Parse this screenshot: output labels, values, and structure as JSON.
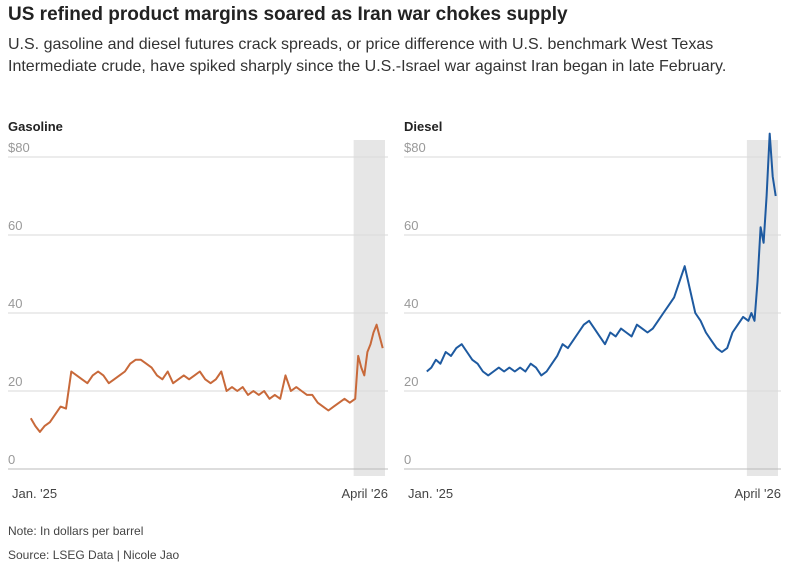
{
  "header": {
    "title": "US refined product margins soared as Iran war chokes supply",
    "subtitle": "U.S. gasoline and diesel futures crack spreads, or price difference with U.S. benchmark West Texas Intermediate crude, have spiked sharply since the U.S.-Israel war against Iran began in late February."
  },
  "footer": {
    "note": "Note: In dollars per barrel",
    "source": "Source: LSEG Data | Nicole Jao"
  },
  "chart_data": [
    {
      "type": "line",
      "title": "Gasoline",
      "color": "#c8693a",
      "ylim": [
        0,
        85
      ],
      "y_ticks": [
        0,
        20,
        40,
        60,
        80
      ],
      "y_tick_labels": [
        "0",
        "20",
        "40",
        "60",
        "$80"
      ],
      "x_tick_labels": [
        "Jan. '25",
        "April '26"
      ],
      "x_range": [
        "2025-01",
        "2026-04"
      ],
      "shaded_region": {
        "from": "2026-02-28",
        "to": "2026-04-10"
      },
      "grid": true,
      "series": [
        {
          "x": [
            "2025-01-02",
            "2025-01-08",
            "2025-01-14",
            "2025-01-20",
            "2025-01-27",
            "2025-02-03",
            "2025-02-10",
            "2025-02-17",
            "2025-02-24",
            "2025-03-03",
            "2025-03-10",
            "2025-03-17",
            "2025-03-24",
            "2025-03-31",
            "2025-04-07",
            "2025-04-14",
            "2025-04-21",
            "2025-04-28",
            "2025-05-05",
            "2025-05-12",
            "2025-05-19",
            "2025-05-26",
            "2025-06-02",
            "2025-06-09",
            "2025-06-16",
            "2025-06-23",
            "2025-06-30",
            "2025-07-07",
            "2025-07-14",
            "2025-07-21",
            "2025-07-28",
            "2025-08-04",
            "2025-08-11",
            "2025-08-18",
            "2025-08-25",
            "2025-09-01",
            "2025-09-08",
            "2025-09-15",
            "2025-09-22",
            "2025-09-29",
            "2025-10-06",
            "2025-10-13",
            "2025-10-20",
            "2025-10-27",
            "2025-11-03",
            "2025-11-10",
            "2025-11-17",
            "2025-11-24",
            "2025-12-01",
            "2025-12-08",
            "2025-12-15",
            "2025-12-22",
            "2025-12-29",
            "2026-01-05",
            "2026-01-12",
            "2026-01-19",
            "2026-01-26",
            "2026-02-02",
            "2026-02-09",
            "2026-02-16",
            "2026-02-23",
            "2026-03-02",
            "2026-03-06",
            "2026-03-10",
            "2026-03-14",
            "2026-03-18",
            "2026-03-22",
            "2026-03-26",
            "2026-03-30",
            "2026-04-03",
            "2026-04-07"
          ],
          "y": [
            13,
            11,
            9.5,
            11,
            12,
            14,
            16,
            15.5,
            25,
            24,
            23,
            22,
            24,
            25,
            24,
            22,
            23,
            24,
            25,
            27,
            28,
            28,
            27,
            26,
            24,
            23,
            25,
            22,
            23,
            24,
            23,
            24,
            25,
            23,
            22,
            23,
            25,
            20,
            21,
            20,
            21,
            19,
            20,
            19,
            20,
            18,
            19,
            18,
            24,
            20,
            21,
            20,
            19,
            19,
            17,
            16,
            15,
            16,
            17,
            18,
            17,
            18,
            29,
            26,
            24,
            30,
            32,
            35,
            37,
            34,
            31
          ]
        }
      ]
    },
    {
      "type": "line",
      "title": "Diesel",
      "color": "#1e5aa0",
      "ylim": [
        0,
        85
      ],
      "y_ticks": [
        0,
        20,
        40,
        60,
        80
      ],
      "y_tick_labels": [
        "0",
        "20",
        "40",
        "60",
        "$80"
      ],
      "x_tick_labels": [
        "Jan. '25",
        "April '26"
      ],
      "x_range": [
        "2025-01",
        "2026-04"
      ],
      "shaded_region": {
        "from": "2026-02-28",
        "to": "2026-04-10"
      },
      "grid": true,
      "series": [
        {
          "x": [
            "2025-01-02",
            "2025-01-08",
            "2025-01-14",
            "2025-01-20",
            "2025-01-27",
            "2025-02-03",
            "2025-02-10",
            "2025-02-17",
            "2025-02-24",
            "2025-03-03",
            "2025-03-10",
            "2025-03-17",
            "2025-03-24",
            "2025-03-31",
            "2025-04-07",
            "2025-04-14",
            "2025-04-21",
            "2025-04-28",
            "2025-05-05",
            "2025-05-12",
            "2025-05-19",
            "2025-05-26",
            "2025-06-02",
            "2025-06-09",
            "2025-06-16",
            "2025-06-23",
            "2025-06-30",
            "2025-07-07",
            "2025-07-14",
            "2025-07-21",
            "2025-07-28",
            "2025-08-04",
            "2025-08-11",
            "2025-08-18",
            "2025-08-25",
            "2025-09-01",
            "2025-09-08",
            "2025-09-15",
            "2025-09-22",
            "2025-09-29",
            "2025-10-06",
            "2025-10-13",
            "2025-10-20",
            "2025-10-27",
            "2025-11-03",
            "2025-11-10",
            "2025-11-17",
            "2025-11-24",
            "2025-12-01",
            "2025-12-08",
            "2025-12-15",
            "2025-12-22",
            "2025-12-29",
            "2026-01-05",
            "2026-01-12",
            "2026-01-19",
            "2026-01-26",
            "2026-02-02",
            "2026-02-09",
            "2026-02-16",
            "2026-02-23",
            "2026-03-02",
            "2026-03-06",
            "2026-03-10",
            "2026-03-14",
            "2026-03-18",
            "2026-03-22",
            "2026-03-26",
            "2026-03-30",
            "2026-04-03",
            "2026-04-07"
          ],
          "y": [
            25,
            26,
            28,
            27,
            30,
            29,
            31,
            32,
            30,
            28,
            27,
            25,
            24,
            25,
            26,
            25,
            26,
            25,
            26,
            25,
            27,
            26,
            24,
            25,
            27,
            29,
            32,
            31,
            33,
            35,
            37,
            38,
            36,
            34,
            32,
            35,
            34,
            36,
            35,
            34,
            37,
            36,
            35,
            36,
            38,
            40,
            42,
            44,
            48,
            52,
            46,
            40,
            38,
            35,
            33,
            31,
            30,
            31,
            35,
            37,
            39,
            38,
            40,
            38,
            48,
            62,
            58,
            70,
            86,
            75,
            70
          ]
        }
      ]
    }
  ]
}
